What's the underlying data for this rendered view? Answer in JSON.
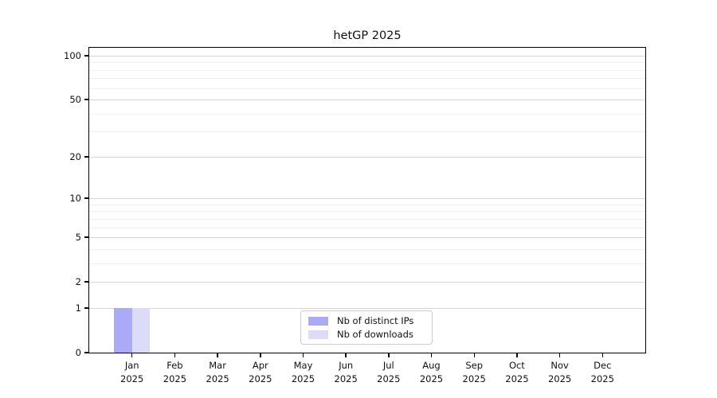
{
  "chart_data": {
    "type": "bar",
    "title": "hetGP 2025",
    "categories": [
      "Jan",
      "Feb",
      "Mar",
      "Apr",
      "May",
      "Jun",
      "Jul",
      "Aug",
      "Sep",
      "Oct",
      "Nov",
      "Dec"
    ],
    "category_year": "2025",
    "series": [
      {
        "name": "Nb of distinct IPs",
        "color": "#aaaaf8",
        "values": [
          1,
          0,
          0,
          0,
          0,
          0,
          0,
          0,
          0,
          0,
          0,
          0
        ]
      },
      {
        "name": "Nb of downloads",
        "color": "#dcdcf8",
        "values": [
          1,
          0,
          0,
          0,
          0,
          0,
          0,
          0,
          0,
          0,
          0,
          0
        ]
      }
    ],
    "y_scale": "log1p",
    "y_major_ticks": [
      0,
      1,
      2,
      5,
      10,
      20,
      50,
      100
    ],
    "y_minor_gridlines": [
      3,
      4,
      6,
      7,
      8,
      9,
      30,
      40,
      60,
      70,
      80,
      90
    ],
    "ylim": [
      0,
      113
    ],
    "grid": "horizontal-only",
    "legend_position": "bottom-center"
  }
}
